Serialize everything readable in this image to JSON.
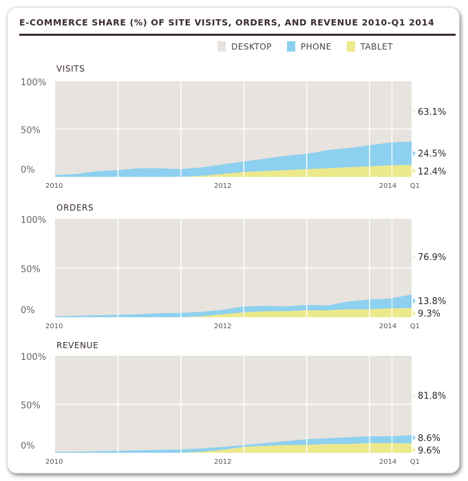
{
  "title": "E-COMMERCE SHARE (%) OF SITE VISITS, ORDERS, AND REVENUE 2010-Q1 2014",
  "legend": [
    {
      "label": "DESKTOP",
      "color": "#e7e3de"
    },
    {
      "label": "PHONE",
      "color": "#8dd0ef"
    },
    {
      "label": "TABLET",
      "color": "#ece98c"
    }
  ],
  "chart_data": [
    {
      "type": "area",
      "title": "VISITS",
      "stacked": true,
      "x": [
        2010.0,
        2010.25,
        2010.5,
        2010.75,
        2011.0,
        2011.25,
        2011.5,
        2011.75,
        2012.0,
        2012.25,
        2012.5,
        2012.75,
        2013.0,
        2013.25,
        2013.5,
        2013.75,
        2014.0,
        2014.25
      ],
      "xticks": [
        "2010",
        "2012",
        "2014",
        "Q1"
      ],
      "yticks": [
        "0%",
        "50%",
        "100%"
      ],
      "ylim": [
        0,
        100
      ],
      "series": [
        {
          "name": "TABLET",
          "values": [
            0,
            0,
            0,
            0,
            0,
            0,
            0,
            1,
            3,
            5,
            6,
            7,
            8,
            9,
            10,
            11,
            12,
            12.4
          ]
        },
        {
          "name": "PHONE",
          "values": [
            2,
            3,
            6,
            7,
            9,
            9,
            8,
            9,
            10,
            11,
            13,
            15,
            16,
            19,
            20,
            22,
            24,
            24.5
          ]
        },
        {
          "name": "DESKTOP",
          "values": [
            98,
            97,
            94,
            93,
            91,
            91,
            92,
            90,
            87,
            84,
            81,
            78,
            76,
            72,
            70,
            67,
            64,
            63.1
          ]
        }
      ],
      "end_labels": {
        "DESKTOP": "63.1%",
        "PHONE": "24.5%",
        "TABLET": "12.4%"
      }
    },
    {
      "type": "area",
      "title": "ORDERS",
      "stacked": true,
      "x": [
        2010.0,
        2010.25,
        2010.5,
        2010.75,
        2011.0,
        2011.25,
        2011.5,
        2011.75,
        2012.0,
        2012.25,
        2012.5,
        2012.75,
        2013.0,
        2013.25,
        2013.5,
        2013.75,
        2014.0,
        2014.25
      ],
      "xticks": [
        "2010",
        "2012",
        "2014",
        "Q1"
      ],
      "yticks": [
        "0%",
        "50%",
        "100%"
      ],
      "ylim": [
        0,
        100
      ],
      "series": [
        {
          "name": "TABLET",
          "values": [
            0,
            0,
            0,
            0,
            0,
            0,
            0,
            1,
            3,
            5,
            6,
            6,
            7,
            7,
            8,
            8,
            9,
            9.3
          ]
        },
        {
          "name": "PHONE",
          "values": [
            1,
            1.5,
            2,
            2.5,
            3,
            4,
            4.5,
            4.5,
            4.5,
            6,
            5.5,
            5,
            5.5,
            5,
            8,
            10,
            10,
            13.8
          ]
        },
        {
          "name": "DESKTOP",
          "values": [
            99,
            98.5,
            98,
            97.5,
            97,
            96,
            95.5,
            94.5,
            92.5,
            89,
            88.5,
            89,
            87.5,
            88,
            84,
            82,
            81,
            76.9
          ]
        }
      ],
      "end_labels": {
        "DESKTOP": "76.9%",
        "PHONE": "13.8%",
        "TABLET": "9.3%"
      }
    },
    {
      "type": "area",
      "title": "REVENUE",
      "stacked": true,
      "x": [
        2010.0,
        2010.25,
        2010.5,
        2010.75,
        2011.0,
        2011.25,
        2011.5,
        2011.75,
        2012.0,
        2012.25,
        2012.5,
        2012.75,
        2013.0,
        2013.25,
        2013.5,
        2013.75,
        2014.0,
        2014.25
      ],
      "xticks": [
        "2010",
        "2012",
        "2014",
        "Q1"
      ],
      "yticks": [
        "0%",
        "50%",
        "100%"
      ],
      "ylim": [
        0,
        100
      ],
      "series": [
        {
          "name": "TABLET",
          "values": [
            0,
            0,
            0,
            0,
            0,
            0,
            0,
            1,
            3,
            6,
            7,
            8,
            8,
            9,
            9,
            10,
            10,
            9.6
          ]
        },
        {
          "name": "PHONE",
          "values": [
            1,
            1,
            1.5,
            2,
            2.5,
            3,
            3.5,
            3.5,
            3,
            2,
            3,
            4,
            6,
            6,
            7,
            7,
            7,
            8.6
          ]
        },
        {
          "name": "DESKTOP",
          "values": [
            99,
            99,
            98.5,
            98,
            97.5,
            97,
            96.5,
            95.5,
            94,
            92,
            90,
            88,
            86,
            85,
            84,
            83,
            83,
            81.8
          ]
        }
      ],
      "end_labels": {
        "DESKTOP": "81.8%",
        "PHONE": "8.6%",
        "TABLET": "9.6%"
      }
    }
  ]
}
